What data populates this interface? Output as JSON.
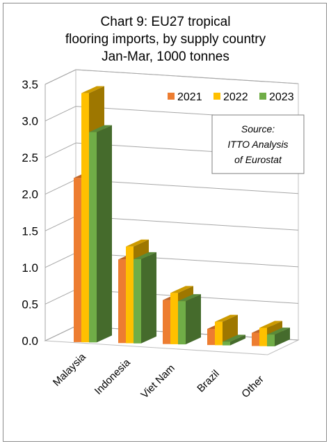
{
  "chart_data": {
    "type": "bar",
    "title": [
      "Chart 9: EU27 tropical",
      "flooring imports, by supply country",
      "Jan-Mar, 1000 tonnes"
    ],
    "categories": [
      "Malaysia",
      "Indonesia",
      "Viet Nam",
      "Brazil",
      "Other"
    ],
    "series": [
      {
        "name": "2021",
        "color": "#ed7d31",
        "values": [
          2.24,
          1.14,
          0.6,
          0.22,
          0.18
        ]
      },
      {
        "name": "2022",
        "color": "#ffc000",
        "values": [
          3.4,
          1.32,
          0.7,
          0.32,
          0.25
        ]
      },
      {
        "name": "2023",
        "color": "#70ad47",
        "values": [
          2.87,
          1.15,
          0.59,
          0.05,
          0.16
        ]
      }
    ],
    "ylim": [
      0,
      3.5
    ],
    "yticks": [
      "0.0",
      "0.5",
      "1.0",
      "1.5",
      "2.0",
      "2.5",
      "3.0",
      "3.5"
    ],
    "xlabel": "",
    "ylabel": "",
    "grid": true,
    "legend_position": "top-right",
    "annotation": [
      "Source:",
      "ITTO Analysis",
      "of Eurostat"
    ]
  }
}
